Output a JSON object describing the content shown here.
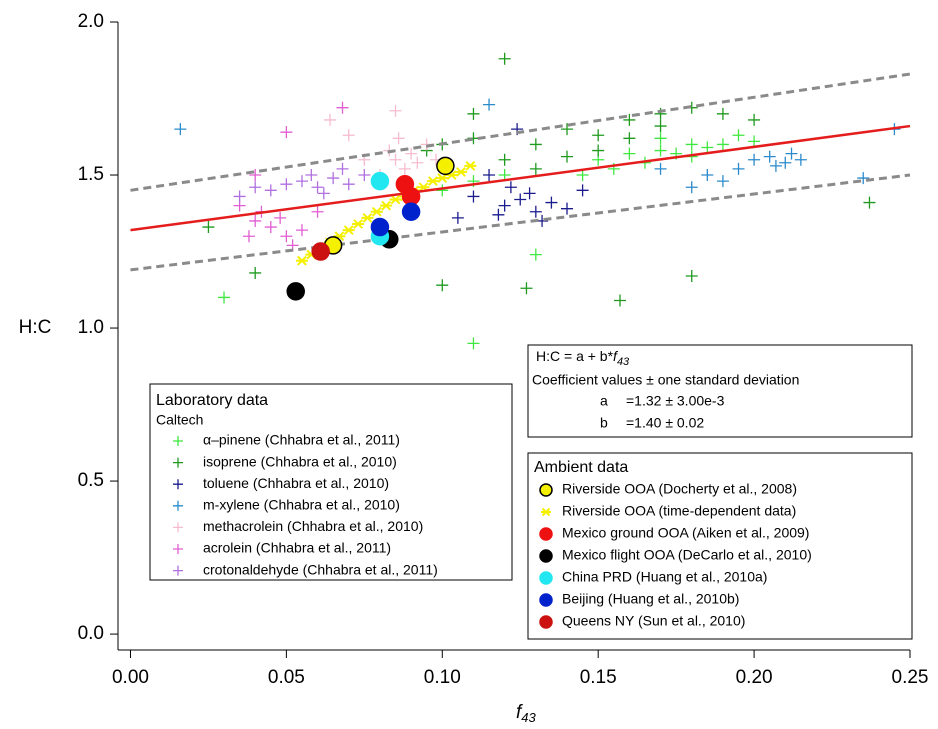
{
  "chart_data": {
    "type": "scatter",
    "xlabel": "f",
    "xlabel_sub": "43",
    "ylabel": "H:C",
    "xlim": [
      -0.004,
      0.25
    ],
    "ylim": [
      -0.052,
      2.0
    ],
    "xticks": [
      {
        "value": 0,
        "label": "0.00"
      },
      {
        "value": 0.05,
        "label": "0.05"
      },
      {
        "value": 0.1,
        "label": "0.10"
      },
      {
        "value": 0.15,
        "label": "0.15"
      },
      {
        "value": 0.2,
        "label": "0.20"
      },
      {
        "value": 0.25,
        "label": "0.25"
      }
    ],
    "yticks": [
      {
        "value": 0,
        "label": "0.0"
      },
      {
        "value": 0.5,
        "label": "0.5"
      },
      {
        "value": 1,
        "label": "1.0"
      },
      {
        "value": 1.5,
        "label": "1.5"
      },
      {
        "value": 2,
        "label": "2.0"
      }
    ],
    "series": [
      {
        "name": "α–pinene (Chhabra et al., 2011)",
        "color": "#3fe83f",
        "marker": "plus",
        "x": [
          0.15,
          0.16,
          0.17,
          0.18,
          0.19,
          0.2,
          0.155,
          0.165,
          0.175,
          0.185,
          0.145,
          0.195,
          0.03,
          0.11,
          0.13,
          0.1,
          0.11,
          0.12,
          0.17,
          0.18
        ],
        "values": [
          1.55,
          1.57,
          1.58,
          1.6,
          1.6,
          1.61,
          1.52,
          1.54,
          1.57,
          1.59,
          1.5,
          1.63,
          1.1,
          0.95,
          1.24,
          1.45,
          1.48,
          1.5,
          1.62,
          1.56
        ]
      },
      {
        "name": "isoprene (Chhabra et al., 2010)",
        "color": "#1f9a1f",
        "marker": "plus",
        "x": [
          0.12,
          0.237,
          0.18,
          0.157,
          0.127,
          0.1,
          0.04,
          0.025,
          0.1,
          0.11,
          0.12,
          0.13,
          0.14,
          0.15,
          0.16,
          0.17,
          0.18,
          0.19,
          0.15,
          0.16,
          0.14,
          0.13,
          0.17,
          0.11,
          0.095,
          0.2
        ],
        "values": [
          1.88,
          1.41,
          1.17,
          1.09,
          1.13,
          1.14,
          1.18,
          1.33,
          1.6,
          1.62,
          1.55,
          1.6,
          1.65,
          1.63,
          1.68,
          1.7,
          1.72,
          1.7,
          1.58,
          1.62,
          1.56,
          1.52,
          1.66,
          1.7,
          1.58,
          1.68
        ]
      },
      {
        "name": "toluene (Chhabra et al., 2010)",
        "color": "#1c1c8e",
        "marker": "plus",
        "x": [
          0.12,
          0.125,
          0.13,
          0.128,
          0.118,
          0.135,
          0.122,
          0.132,
          0.11,
          0.14,
          0.124,
          0.115,
          0.105,
          0.145
        ],
        "values": [
          1.4,
          1.42,
          1.38,
          1.44,
          1.37,
          1.41,
          1.46,
          1.35,
          1.43,
          1.39,
          1.65,
          1.5,
          1.36,
          1.45
        ]
      },
      {
        "name": "m-xylene (Chhabra et al., 2010)",
        "color": "#2b8bcc",
        "marker": "plus",
        "x": [
          0.2,
          0.205,
          0.21,
          0.215,
          0.212,
          0.207,
          0.185,
          0.19,
          0.195,
          0.016,
          0.115,
          0.245,
          0.235,
          0.17,
          0.18
        ],
        "values": [
          1.55,
          1.56,
          1.54,
          1.55,
          1.57,
          1.53,
          1.5,
          1.48,
          1.52,
          1.65,
          1.73,
          1.65,
          1.49,
          1.52,
          1.46
        ]
      },
      {
        "name": "methacrolein (Chhabra et al., 2010)",
        "color": "#f6bccf",
        "marker": "plus",
        "x": [
          0.085,
          0.09,
          0.095,
          0.088,
          0.092,
          0.08,
          0.075,
          0.083,
          0.098,
          0.07,
          0.064,
          0.085,
          0.086
        ],
        "values": [
          1.55,
          1.57,
          1.6,
          1.52,
          1.54,
          1.5,
          1.55,
          1.58,
          1.55,
          1.63,
          1.68,
          1.71,
          1.62
        ]
      },
      {
        "name": "acrolein (Chhabra et al., 2011)",
        "color": "#e05ed2",
        "marker": "plus",
        "x": [
          0.04,
          0.045,
          0.05,
          0.042,
          0.048,
          0.055,
          0.035,
          0.038,
          0.052,
          0.06,
          0.05,
          0.068,
          0.04
        ],
        "values": [
          1.35,
          1.33,
          1.3,
          1.38,
          1.36,
          1.32,
          1.4,
          1.3,
          1.27,
          1.38,
          1.64,
          1.72,
          1.5
        ]
      },
      {
        "name": "crotonaldehyde (Chhabra et al., 2011)",
        "color": "#b070e0",
        "marker": "plus",
        "x": [
          0.05,
          0.055,
          0.06,
          0.065,
          0.058,
          0.062,
          0.07,
          0.045,
          0.04,
          0.068,
          0.075,
          0.035
        ],
        "values": [
          1.47,
          1.48,
          1.46,
          1.49,
          1.5,
          1.44,
          1.47,
          1.45,
          1.46,
          1.52,
          1.5,
          1.43
        ]
      }
    ],
    "ambient_series": [
      {
        "name": "Riverside OOA (Docherty et al., 2008)",
        "color": "#f5f000",
        "marker": "circle",
        "x": [
          0.101,
          0.065
        ],
        "values": [
          1.53,
          1.27
        ]
      },
      {
        "name": "Riverside OOA (time-dependent data)",
        "color": "#f5f000",
        "marker": "asterisk",
        "x": [
          0.055,
          0.058,
          0.061,
          0.064,
          0.067,
          0.07,
          0.073,
          0.076,
          0.079,
          0.082,
          0.085,
          0.088,
          0.091,
          0.094,
          0.097,
          0.1,
          0.103,
          0.106,
          0.109
        ],
        "values": [
          1.22,
          1.24,
          1.26,
          1.28,
          1.3,
          1.32,
          1.34,
          1.36,
          1.38,
          1.4,
          1.42,
          1.43,
          1.45,
          1.46,
          1.48,
          1.49,
          1.5,
          1.51,
          1.53
        ]
      },
      {
        "name": "Mexico ground OOA (Aiken et al., 2009)",
        "color": "#ee1111",
        "marker": "circle",
        "x": [
          0.088,
          0.09
        ],
        "values": [
          1.47,
          1.43
        ]
      },
      {
        "name": "Mexico flight OOA (DeCarlo et al., 2010)",
        "color": "#000000",
        "marker": "circle",
        "x": [
          0.053,
          0.083
        ],
        "values": [
          1.12,
          1.29
        ]
      },
      {
        "name": "China PRD (Huang et al., 2010a)",
        "color": "#22e6f0",
        "marker": "circle",
        "x": [
          0.08,
          0.08
        ],
        "values": [
          1.48,
          1.3
        ]
      },
      {
        "name": "Beijing (Huang et al., 2010b)",
        "color": "#0022cc",
        "marker": "circle",
        "x": [
          0.08,
          0.09
        ],
        "values": [
          1.33,
          1.38
        ]
      },
      {
        "name": "Queens NY (Sun et al., 2010)",
        "color": "#cc1111",
        "marker": "circle",
        "x": [
          0.061
        ],
        "values": [
          1.25
        ]
      }
    ],
    "fit_line": {
      "color": "#e51c1c",
      "x": [
        0,
        0.25
      ],
      "values": [
        1.32,
        1.66
      ]
    },
    "bounds": [
      {
        "color": "#8a8a8a",
        "x": [
          0,
          0.25
        ],
        "values": [
          1.45,
          1.83
        ]
      },
      {
        "color": "#8a8a8a",
        "x": [
          0,
          0.25
        ],
        "values": [
          1.19,
          1.5
        ]
      }
    ],
    "lab_legend": {
      "title": "Laboratory data",
      "subtitle": "Caltech"
    },
    "ambient_legend": {
      "title": "Ambient data"
    },
    "fit_box": {
      "equation": "H:C = a + b*",
      "equation_var": "f",
      "equation_sub": "43",
      "caption": "Coefficient values ± one standard deviation",
      "coefficients": [
        {
          "name": "a",
          "value": "=1.32 ± 3.00e-3"
        },
        {
          "name": "b",
          "value": "=1.40 ± 0.02"
        }
      ]
    }
  }
}
